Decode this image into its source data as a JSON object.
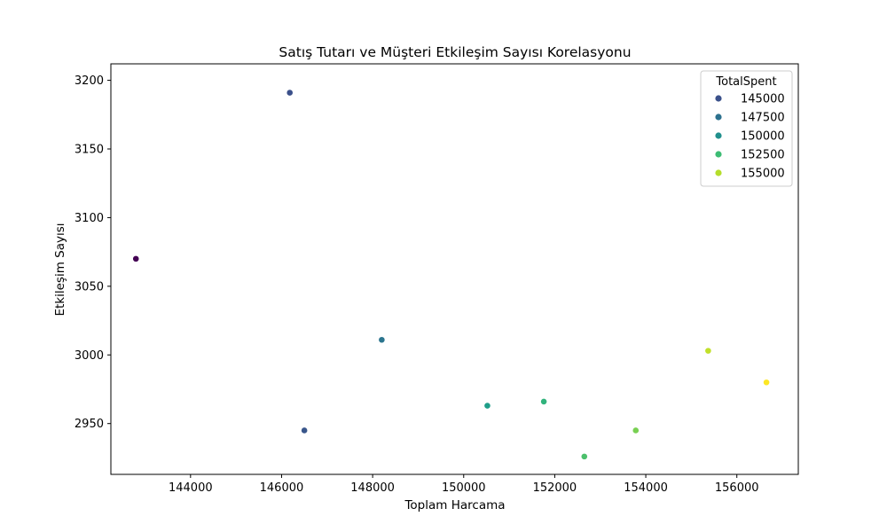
{
  "chart_data": {
    "type": "scatter",
    "title": "Satış Tutarı ve Müşteri Etkileşim Sayısı Korelasyonu",
    "xlabel": "Toplam Harcama",
    "ylabel": "Etkileşim Sayısı",
    "xlim": [
      142250,
      157350
    ],
    "ylim": [
      2913,
      3212
    ],
    "xticks": [
      144000,
      146000,
      148000,
      150000,
      152000,
      154000,
      156000
    ],
    "yticks": [
      2950,
      3000,
      3050,
      3100,
      3150,
      3200
    ],
    "grid": false,
    "colormap": "viridis",
    "color_range": [
      142800,
      156650
    ],
    "points": [
      {
        "x": 142800,
        "y": 3070
      },
      {
        "x": 146180,
        "y": 3191
      },
      {
        "x": 146500,
        "y": 2945
      },
      {
        "x": 148200,
        "y": 3011
      },
      {
        "x": 150520,
        "y": 2963
      },
      {
        "x": 151760,
        "y": 2966
      },
      {
        "x": 152650,
        "y": 2926
      },
      {
        "x": 153780,
        "y": 2945
      },
      {
        "x": 155370,
        "y": 3003
      },
      {
        "x": 156650,
        "y": 2980
      }
    ],
    "legend": {
      "title": "TotalSpent",
      "position": "top-right",
      "entries": [
        {
          "label": "145000",
          "color": "#3b518b"
        },
        {
          "label": "147500",
          "color": "#2c718e"
        },
        {
          "label": "150000",
          "color": "#21908d"
        },
        {
          "label": "152500",
          "color": "#3dbc74"
        },
        {
          "label": "155000",
          "color": "#b5de2b"
        }
      ]
    }
  }
}
